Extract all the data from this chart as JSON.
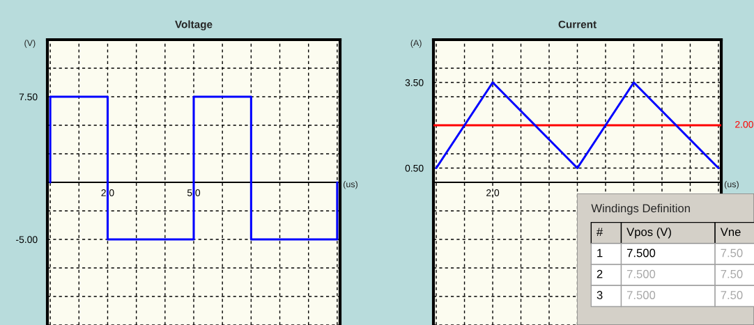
{
  "chart_data": [
    {
      "type": "line",
      "title": "Voltage",
      "ylabel": "(V)",
      "xlabel": "(us)",
      "x": [
        0,
        0,
        2,
        2,
        5,
        5,
        7,
        7,
        10,
        10
      ],
      "series": [
        {
          "color": "#0000ff",
          "values": [
            0,
            7.5,
            7.5,
            -5,
            -5,
            7.5,
            7.5,
            -5,
            -5,
            0
          ]
        }
      ],
      "xlim": [
        -0.1,
        10.1
      ],
      "ylim": [
        -12.5,
        12.5
      ],
      "xticks": [
        {
          "value": 0,
          "label": null
        },
        {
          "value": 1,
          "label": null
        },
        {
          "value": 2,
          "label": "2.0"
        },
        {
          "value": 3,
          "label": null
        },
        {
          "value": 4,
          "label": null
        },
        {
          "value": 5,
          "label": "5.0"
        },
        {
          "value": 6,
          "label": null
        },
        {
          "value": 7,
          "label": null
        },
        {
          "value": 8,
          "label": null
        },
        {
          "value": 9,
          "label": null
        },
        {
          "value": 10,
          "label": null
        }
      ],
      "yticks": [
        {
          "value": -12.5,
          "label": null
        },
        {
          "value": -10,
          "label": null
        },
        {
          "value": -7.5,
          "label": null
        },
        {
          "value": -5,
          "label": "-5.00"
        },
        {
          "value": -2.5,
          "label": null
        },
        {
          "value": 0,
          "label": null
        },
        {
          "value": 2.5,
          "label": null
        },
        {
          "value": 5,
          "label": null
        },
        {
          "value": 7.5,
          "label": "7.50"
        },
        {
          "value": 10,
          "label": null
        },
        {
          "value": 12.5,
          "label": null
        }
      ],
      "grid": true,
      "legend": false,
      "line_style": "solid",
      "marker": "none"
    },
    {
      "type": "line",
      "title": "Current",
      "ylabel": "(A)",
      "xlabel": "(us)",
      "categories": [
        null,
        null,
        "2.0",
        null,
        null,
        null,
        null,
        null,
        null,
        null,
        null
      ],
      "series": [
        {
          "color": "#0000ff",
          "values": [
            0.5,
            2.0,
            3.5,
            2.5,
            1.5,
            0.5,
            2.0,
            3.5,
            2.5,
            1.5,
            0.5
          ]
        }
      ],
      "ylim": [
        -5,
        5
      ],
      "yticks": [
        {
          "value": -5,
          "label": null
        },
        {
          "value": -4,
          "label": null
        },
        {
          "value": -3,
          "label": null
        },
        {
          "value": -2,
          "label": null
        },
        {
          "value": -1,
          "label": null
        },
        {
          "value": 0,
          "label": null
        },
        {
          "value": 0.5,
          "label": "0.50"
        },
        {
          "value": 1,
          "label": null
        },
        {
          "value": 2,
          "label": null
        },
        {
          "value": 3,
          "label": null
        },
        {
          "value": 3.5,
          "label": "3.50"
        },
        {
          "value": 4,
          "label": null
        },
        {
          "value": 5,
          "label": null
        }
      ],
      "ref_lines": [
        {
          "axis": "y",
          "value": 2.0,
          "label": "2.00",
          "color": "#ff0000",
          "line_style": "solid"
        }
      ],
      "grid": true,
      "legend": false,
      "line_style": "solid",
      "marker": "none"
    },
    {
      "type": "other",
      "title": "Windings Definition",
      "annotations": [
        "#",
        "Vpos (V)",
        "Vne",
        "1",
        "7.500",
        "7.50",
        "2",
        "7.500",
        "7.50",
        "3",
        "7.500",
        "7.50"
      ]
    }
  ]
}
